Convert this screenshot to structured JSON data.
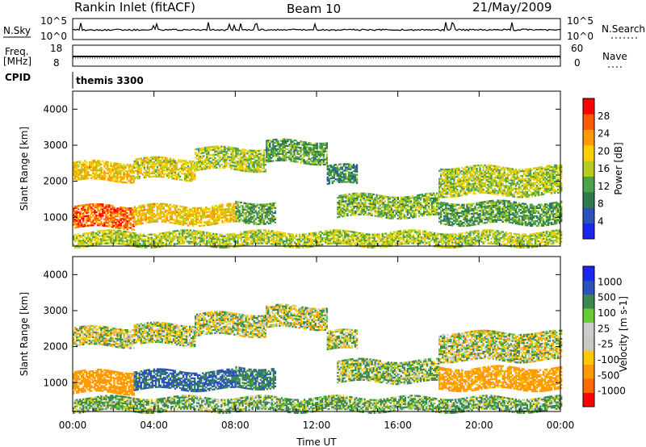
{
  "header": {
    "station": "Rankin Inlet (fitACF)",
    "beam": "Beam 10",
    "date": "21/May/2009"
  },
  "strips": {
    "nsky_label": "N.Sky",
    "nsky_ticks": [
      "10^5",
      "10^0"
    ],
    "nsearch_label": "N.Search",
    "nsearch_ticks": [
      "10^5",
      "10^0"
    ],
    "freq_label": "Freq.",
    "freq_unit": "[MHz]",
    "freq_ticks": [
      "18",
      "8"
    ],
    "nave_label": "Nave",
    "nave_ticks": [
      "60",
      "0"
    ],
    "cpid_label": "CPID",
    "cpid_value": "themis 3300"
  },
  "colors": {
    "power": [
      "#1a26f0",
      "#2a52b8",
      "#2f7a4e",
      "#4aa24a",
      "#b4cc20",
      "#ffd000",
      "#ff9a00",
      "#ff5a00",
      "#ff0000"
    ],
    "velocity": [
      "#ff0000",
      "#ff6a00",
      "#ff9a00",
      "#ffc800",
      "#c8c8c0",
      "#cccccc",
      "#66cc33",
      "#3a8a50",
      "#2a52b8",
      "#1a26f0"
    ]
  },
  "chart_data": [
    {
      "type": "heatmap",
      "name": "power",
      "xlabel": "",
      "ylabel": "Slant Range [km]",
      "x_range_hours": [
        0,
        24
      ],
      "ylim": [
        200,
        4500
      ],
      "yticks": [
        "4000",
        "3000",
        "2000",
        "1000"
      ],
      "colorbar": {
        "label": "Power [dB]",
        "ticks": [
          "28",
          "24",
          "20",
          "16",
          "12",
          "8",
          "4"
        ],
        "range": [
          0,
          32
        ]
      },
      "bands": [
        {
          "time": [
            0.0,
            3.0
          ],
          "range": [
            2000,
            2500
          ],
          "level": 20
        },
        {
          "time": [
            3.0,
            6.0
          ],
          "range": [
            2050,
            2600
          ],
          "level": 18
        },
        {
          "time": [
            6.0,
            9.5
          ],
          "range": [
            2300,
            2900
          ],
          "level": 16
        },
        {
          "time": [
            9.5,
            12.5
          ],
          "range": [
            2500,
            3100
          ],
          "level": 12
        },
        {
          "time": [
            12.5,
            14.0
          ],
          "range": [
            1900,
            2400
          ],
          "level": 10
        },
        {
          "time": [
            18.0,
            24.0
          ],
          "range": [
            1600,
            2400
          ],
          "level": 16
        },
        {
          "time": [
            0.0,
            3.0
          ],
          "range": [
            700,
            1300
          ],
          "level": 26
        },
        {
          "time": [
            3.0,
            8.0
          ],
          "range": [
            800,
            1300
          ],
          "level": 20
        },
        {
          "time": [
            8.0,
            10.0
          ],
          "range": [
            850,
            1400
          ],
          "level": 12
        },
        {
          "time": [
            13.0,
            18.0
          ],
          "range": [
            1000,
            1600
          ],
          "level": 14
        },
        {
          "time": [
            18.0,
            24.0
          ],
          "range": [
            800,
            1400
          ],
          "level": 12
        },
        {
          "time": [
            0.0,
            24.0
          ],
          "range": [
            200,
            600
          ],
          "level": 16
        }
      ]
    },
    {
      "type": "heatmap",
      "name": "velocity",
      "xlabel": "Time UT",
      "ylabel": "Slant Range [km]",
      "x_range_hours": [
        0,
        24
      ],
      "xticks": [
        "00:00",
        "04:00",
        "08:00",
        "12:00",
        "16:00",
        "20:00",
        "00:00"
      ],
      "ylim": [
        200,
        4500
      ],
      "yticks": [
        "4000",
        "3000",
        "2000",
        "1000"
      ],
      "colorbar": {
        "label": "Velocity [m s-1]",
        "ticks": [
          "1000",
          "500",
          "100",
          "25",
          "-25",
          "-100",
          "-500",
          "-1000"
        ]
      },
      "bands": [
        {
          "time": [
            0.0,
            3.0
          ],
          "range": [
            2000,
            2500
          ],
          "velocity": 0
        },
        {
          "time": [
            3.0,
            6.0
          ],
          "range": [
            2050,
            2600
          ],
          "velocity": 0
        },
        {
          "time": [
            6.0,
            9.5
          ],
          "range": [
            2300,
            2900
          ],
          "velocity": 0
        },
        {
          "time": [
            9.5,
            12.5
          ],
          "range": [
            2500,
            3100
          ],
          "velocity": 0
        },
        {
          "time": [
            12.5,
            14.0
          ],
          "range": [
            1900,
            2400
          ],
          "velocity": 0
        },
        {
          "time": [
            18.0,
            24.0
          ],
          "range": [
            1600,
            2400
          ],
          "velocity": 0
        },
        {
          "time": [
            0.0,
            3.0
          ],
          "range": [
            700,
            1300
          ],
          "velocity": -300
        },
        {
          "time": [
            3.0,
            8.0
          ],
          "range": [
            800,
            1300
          ],
          "velocity": 300
        },
        {
          "time": [
            8.0,
            10.0
          ],
          "range": [
            850,
            1400
          ],
          "velocity": 200
        },
        {
          "time": [
            13.0,
            18.0
          ],
          "range": [
            1000,
            1600
          ],
          "velocity": 50
        },
        {
          "time": [
            18.0,
            24.0
          ],
          "range": [
            800,
            1400
          ],
          "velocity": -200
        },
        {
          "time": [
            0.0,
            24.0
          ],
          "range": [
            200,
            600
          ],
          "velocity": 80
        }
      ]
    }
  ]
}
